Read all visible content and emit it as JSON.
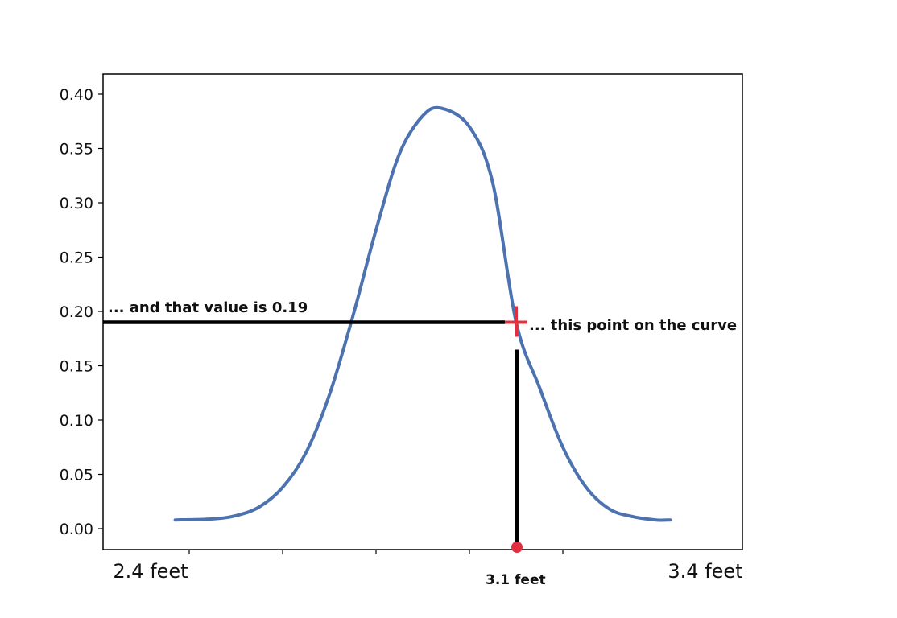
{
  "chart_data": {
    "type": "line",
    "title": "",
    "xlabel": "",
    "ylabel": "",
    "ylim": [
      -0.018,
      0.4
    ],
    "xlim": [
      2.33,
      3.45
    ],
    "grid": false,
    "yticks": [
      "0.00",
      "0.05",
      "0.10",
      "0.15",
      "0.20",
      "0.25",
      "0.30",
      "0.35",
      "0.40"
    ],
    "ytick_values": [
      0,
      0.05,
      0.1,
      0.15,
      0.2,
      0.25,
      0.3,
      0.35,
      0.4
    ],
    "xtick_values": [
      2.4,
      2.6,
      2.8,
      3.0,
      3.2
    ],
    "xtick_labels": [
      {
        "x": 2.4,
        "label": "2.4 feet"
      },
      {
        "x": 3.4,
        "label": "3.4 feet"
      }
    ],
    "series": [
      {
        "color": "#4c72b0",
        "x": [
          2.37,
          2.45,
          2.5,
          2.55,
          2.6,
          2.65,
          2.7,
          2.75,
          2.8,
          2.85,
          2.9,
          2.94,
          3.0,
          3.05,
          3.1,
          3.15,
          3.2,
          3.25,
          3.3,
          3.35,
          3.4,
          3.43
        ],
        "y": [
          0.008,
          0.009,
          0.012,
          0.02,
          0.038,
          0.07,
          0.123,
          0.195,
          0.275,
          0.345,
          0.38,
          0.387,
          0.37,
          0.318,
          0.19,
          0.13,
          0.075,
          0.038,
          0.018,
          0.011,
          0.008,
          0.008
        ]
      }
    ],
    "highlight": {
      "x": 3.1,
      "y": 0.19,
      "x_label": "3.1 feet",
      "point_label": "... this point on the curve",
      "value_label": "... and that value is 0.19",
      "marker_color": "#e03040"
    }
  }
}
